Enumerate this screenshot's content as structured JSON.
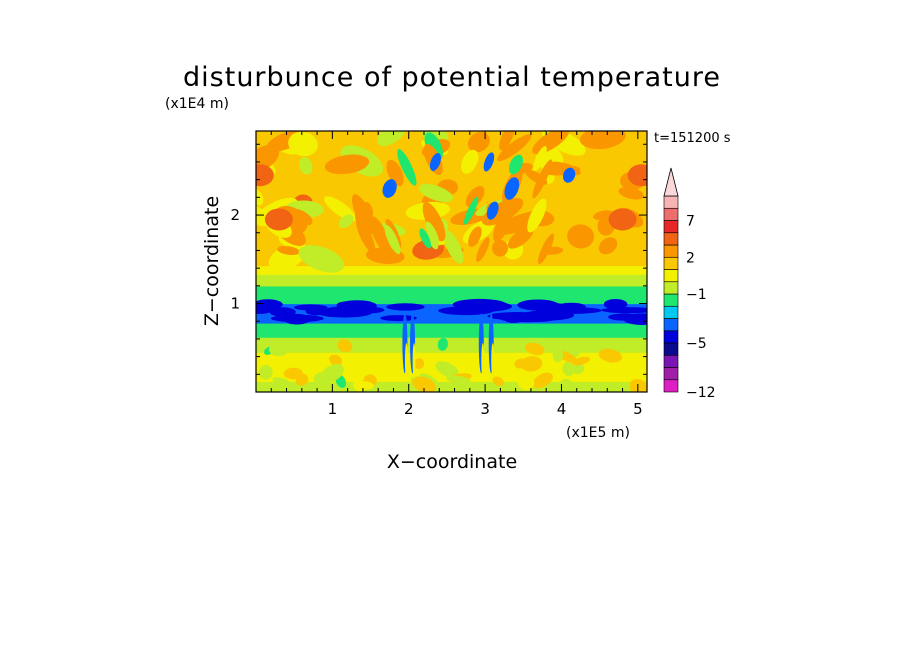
{
  "chart_data": {
    "type": "heatmap",
    "title": "disturbunce of potential temperature",
    "time_label": "t=151200 s",
    "xlabel": "X−coordinate",
    "ylabel": "Z−coordinate",
    "x_scale_label": "(x1E5 m)",
    "y_scale_label": "(x1E4 m)",
    "xlim": [
      0,
      5.12
    ],
    "ylim": [
      0,
      2.95
    ],
    "x_ticks": [
      1,
      2,
      3,
      4,
      5
    ],
    "y_ticks": [
      1,
      2
    ],
    "x_tick_labels": [
      "1",
      "2",
      "3",
      "4",
      "5"
    ],
    "y_tick_labels": [
      "1",
      "2"
    ],
    "colorbar": {
      "levels": [
        -12,
        -11,
        -9,
        -7,
        -5,
        -4,
        -3,
        -2,
        -1,
        0,
        1,
        2,
        3,
        5,
        7,
        9,
        11
      ],
      "labeled_values": [
        7,
        2,
        -1,
        -5,
        -12
      ],
      "labels": [
        "7",
        "2",
        "−1",
        "−5",
        "−12"
      ],
      "colors": [
        "#e01ec6",
        "#a01ea8",
        "#7a14b4",
        "#0a0a8c",
        "#0000dc",
        "#0a64ff",
        "#00c8f0",
        "#1ee66e",
        "#c0ec28",
        "#f4f002",
        "#fac800",
        "#fa9600",
        "#f06414",
        "#e62828",
        "#ee6e6e",
        "#f8b4b4"
      ],
      "extend_top_color": "#f8d8d8"
    },
    "layers": [
      {
        "z_range": [
          0.0,
          0.12
        ],
        "dominant_level": -1
      },
      {
        "z_range": [
          0.12,
          0.45
        ],
        "dominant_level": 0
      },
      {
        "z_range": [
          0.45,
          0.62
        ],
        "dominant_level": -1
      },
      {
        "z_range": [
          0.62,
          0.78
        ],
        "dominant_level": -2
      },
      {
        "z_range": [
          0.78,
          1.0
        ],
        "dominant_level": -4
      },
      {
        "z_range": [
          1.0,
          1.2
        ],
        "dominant_level": -2
      },
      {
        "z_range": [
          1.2,
          1.33
        ],
        "dominant_level": -1
      },
      {
        "z_range": [
          1.33,
          1.43
        ],
        "dominant_level": 0
      },
      {
        "z_range": [
          1.43,
          2.95
        ],
        "dominant_level": 1
      }
    ]
  }
}
